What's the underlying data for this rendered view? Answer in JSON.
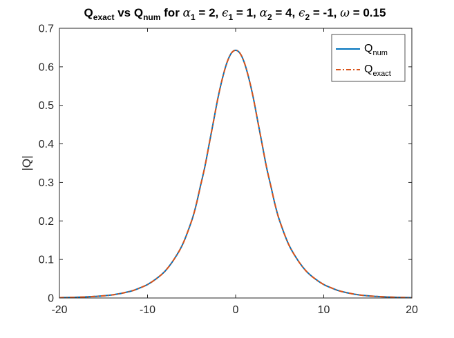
{
  "chart_data": {
    "type": "line",
    "title": {
      "parts": [
        {
          "text": "Q",
          "sub": false
        },
        {
          "text": "exact",
          "sub": true
        },
        {
          "text": " vs Q",
          "sub": false
        },
        {
          "text": "num",
          "sub": true
        },
        {
          "text": " for ",
          "sub": false
        },
        {
          "text": "α",
          "sub": false,
          "italic": true
        },
        {
          "text": "1",
          "sub": true
        },
        {
          "text": " = 2, ",
          "sub": false
        },
        {
          "text": "ϵ",
          "sub": false,
          "italic": true
        },
        {
          "text": "1",
          "sub": true
        },
        {
          "text": " = 1, ",
          "sub": false
        },
        {
          "text": "α",
          "sub": false,
          "italic": true
        },
        {
          "text": "2",
          "sub": true
        },
        {
          "text": " = 4, ",
          "sub": false
        },
        {
          "text": "ϵ",
          "sub": false,
          "italic": true
        },
        {
          "text": "2",
          "sub": true
        },
        {
          "text": " = -1, ",
          "sub": false
        },
        {
          "text": "ω",
          "sub": false,
          "italic": true
        },
        {
          "text": " = 0.15",
          "sub": false
        }
      ]
    },
    "xlabel": "",
    "ylabel": "|Q|",
    "xlim": [
      -20,
      20
    ],
    "ylim": [
      0,
      0.7
    ],
    "xticks": [
      -20,
      -10,
      0,
      10,
      20
    ],
    "yticks": [
      0,
      0.1,
      0.2,
      0.3,
      0.4,
      0.5,
      0.6,
      0.7
    ],
    "xtick_labels": [
      "-20",
      "-10",
      "0",
      "10",
      "20"
    ],
    "ytick_labels": [
      "0",
      "0.1",
      "0.2",
      "0.3",
      "0.4",
      "0.5",
      "0.6",
      "0.7"
    ],
    "grid": false,
    "legend_position": "top-right",
    "x": [
      -20,
      -18,
      -16,
      -14,
      -12,
      -11,
      -10,
      -9,
      -8,
      -7,
      -6,
      -5,
      -4.5,
      -4,
      -3.5,
      -3,
      -2.5,
      -2,
      -1.5,
      -1,
      -0.5,
      0,
      0.5,
      1,
      1.5,
      2,
      2.5,
      3,
      3.5,
      4,
      4.5,
      5,
      6,
      7,
      8,
      9,
      10,
      11,
      12,
      14,
      16,
      18,
      20
    ],
    "series": [
      {
        "name": {
          "parts": [
            {
              "text": "Q",
              "sub": false
            },
            {
              "text": "num",
              "sub": true
            }
          ]
        },
        "color": "#0072BD",
        "style": "solid",
        "values": [
          0.001,
          0.002,
          0.004,
          0.008,
          0.017,
          0.025,
          0.035,
          0.05,
          0.07,
          0.1,
          0.14,
          0.2,
          0.24,
          0.29,
          0.34,
          0.4,
          0.46,
          0.52,
          0.57,
          0.61,
          0.635,
          0.643,
          0.635,
          0.61,
          0.57,
          0.52,
          0.46,
          0.4,
          0.34,
          0.29,
          0.24,
          0.2,
          0.14,
          0.1,
          0.07,
          0.05,
          0.035,
          0.025,
          0.017,
          0.008,
          0.004,
          0.002,
          0.001
        ]
      },
      {
        "name": {
          "parts": [
            {
              "text": "Q",
              "sub": false
            },
            {
              "text": "exact",
              "sub": true
            }
          ]
        },
        "color": "#D95319",
        "style": "dashdot",
        "values": [
          0.001,
          0.002,
          0.004,
          0.008,
          0.017,
          0.025,
          0.035,
          0.05,
          0.07,
          0.1,
          0.14,
          0.2,
          0.24,
          0.29,
          0.34,
          0.4,
          0.46,
          0.52,
          0.57,
          0.61,
          0.635,
          0.643,
          0.635,
          0.61,
          0.57,
          0.52,
          0.46,
          0.4,
          0.34,
          0.29,
          0.24,
          0.2,
          0.14,
          0.1,
          0.07,
          0.05,
          0.035,
          0.025,
          0.017,
          0.008,
          0.004,
          0.002,
          0.001
        ]
      }
    ]
  }
}
